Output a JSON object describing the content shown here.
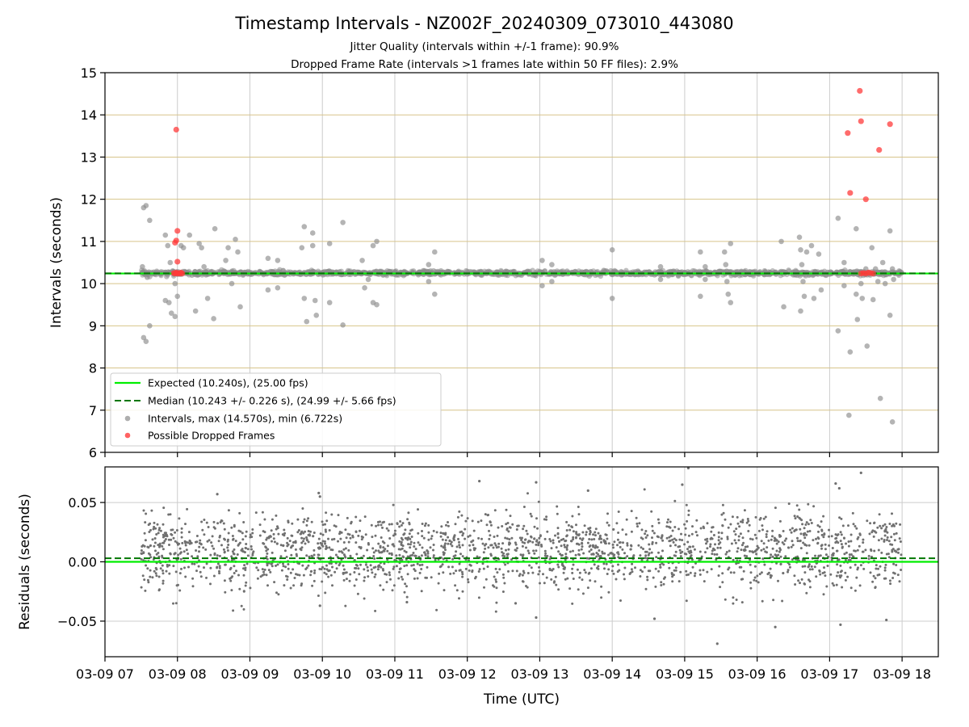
{
  "title": "Timestamp Intervals - NZ002F_20240309_073010_443080",
  "subtitle_lines": [
    "Jitter Quality (intervals within +/-1 frame): 90.9%",
    "Dropped Frame Rate (intervals >1 frames late within 50 FF files): 2.9%"
  ],
  "colors": {
    "expected": "#00ee00",
    "median": "#007700",
    "intervals": "#8c8c8c",
    "dropped": "#ff3b3b",
    "residuals": "#707070",
    "hgrid_top": "#d7c48a",
    "vgrid": "#cccccc"
  },
  "chart_data": [
    {
      "type": "scatter",
      "panel": "top",
      "ylabel": "Intervals (seconds)",
      "xlim": [
        "2024-03-09T07:00",
        "2024-03-09T18:30"
      ],
      "ylim": [
        6,
        15
      ],
      "yticks": [
        6,
        7,
        8,
        9,
        10,
        11,
        12,
        13,
        14,
        15
      ],
      "grid": true,
      "legend_position": "lower-left",
      "expected_line": 10.24,
      "median_line": 10.243,
      "legend": [
        "Expected (10.240s), (25.00 fps)",
        "Median (10.243 +/- 0.226 s), (24.99 +/- 5.66 fps)",
        "Intervals, max (14.570s), min (6.722s)",
        "Possible Dropped Frames"
      ],
      "band": {
        "start": "2024-03-09T07:30",
        "end": "2024-03-09T18:00",
        "center": 10.25,
        "spread": 0.025
      },
      "outlier_intervals": [
        [
          "2024-03-09T07:32",
          11.8
        ],
        [
          "2024-03-09T07:34",
          11.85
        ],
        [
          "2024-03-09T07:37",
          11.5
        ],
        [
          "2024-03-09T07:32",
          8.72
        ],
        [
          "2024-03-09T07:34",
          8.63
        ],
        [
          "2024-03-09T07:37",
          9.0
        ],
        [
          "2024-03-09T07:31",
          10.4
        ],
        [
          "2024-03-09T07:35",
          10.15
        ],
        [
          "2024-03-09T07:50",
          11.15
        ],
        [
          "2024-03-09T07:52",
          10.9
        ],
        [
          "2024-03-09T07:54",
          10.5
        ],
        [
          "2024-03-09T07:56",
          10.3
        ],
        [
          "2024-03-09T07:58",
          10.0
        ],
        [
          "2024-03-09T07:50",
          9.6
        ],
        [
          "2024-03-09T07:53",
          9.55
        ],
        [
          "2024-03-09T07:55",
          9.3
        ],
        [
          "2024-03-09T07:58",
          9.22
        ],
        [
          "2024-03-09T08:00",
          9.7
        ],
        [
          "2024-03-09T08:03",
          10.9
        ],
        [
          "2024-03-09T08:05",
          10.85
        ],
        [
          "2024-03-09T08:10",
          11.15
        ],
        [
          "2024-03-09T08:12",
          10.2
        ],
        [
          "2024-03-09T08:15",
          9.35
        ],
        [
          "2024-03-09T08:18",
          10.95
        ],
        [
          "2024-03-09T08:20",
          10.85
        ],
        [
          "2024-03-09T08:22",
          10.4
        ],
        [
          "2024-03-09T08:25",
          9.65
        ],
        [
          "2024-03-09T08:30",
          9.17
        ],
        [
          "2024-03-09T08:31",
          11.3
        ],
        [
          "2024-03-09T08:40",
          10.55
        ],
        [
          "2024-03-09T08:42",
          10.85
        ],
        [
          "2024-03-09T08:45",
          10.0
        ],
        [
          "2024-03-09T08:48",
          11.05
        ],
        [
          "2024-03-09T08:50",
          10.75
        ],
        [
          "2024-03-09T08:52",
          9.45
        ],
        [
          "2024-03-09T09:15",
          10.6
        ],
        [
          "2024-03-09T09:15",
          9.85
        ],
        [
          "2024-03-09T09:23",
          10.55
        ],
        [
          "2024-03-09T09:23",
          9.9
        ],
        [
          "2024-03-09T09:43",
          10.85
        ],
        [
          "2024-03-09T09:45",
          11.35
        ],
        [
          "2024-03-09T09:45",
          9.65
        ],
        [
          "2024-03-09T09:47",
          9.1
        ],
        [
          "2024-03-09T09:52",
          11.2
        ],
        [
          "2024-03-09T09:52",
          10.9
        ],
        [
          "2024-03-09T09:54",
          9.6
        ],
        [
          "2024-03-09T09:55",
          9.25
        ],
        [
          "2024-03-09T10:06",
          10.95
        ],
        [
          "2024-03-09T10:06",
          9.55
        ],
        [
          "2024-03-09T10:17",
          11.45
        ],
        [
          "2024-03-09T10:17",
          9.02
        ],
        [
          "2024-03-09T10:33",
          10.55
        ],
        [
          "2024-03-09T10:35",
          9.9
        ],
        [
          "2024-03-09T10:38",
          10.1
        ],
        [
          "2024-03-09T10:42",
          10.9
        ],
        [
          "2024-03-09T10:45",
          11.0
        ],
        [
          "2024-03-09T10:42",
          9.55
        ],
        [
          "2024-03-09T10:45",
          9.5
        ],
        [
          "2024-03-09T11:28",
          10.45
        ],
        [
          "2024-03-09T11:28",
          10.05
        ],
        [
          "2024-03-09T11:33",
          10.75
        ],
        [
          "2024-03-09T11:33",
          9.75
        ],
        [
          "2024-03-09T13:02",
          10.55
        ],
        [
          "2024-03-09T13:02",
          9.95
        ],
        [
          "2024-03-09T13:10",
          10.45
        ],
        [
          "2024-03-09T13:10",
          10.05
        ],
        [
          "2024-03-09T14:00",
          10.8
        ],
        [
          "2024-03-09T14:00",
          9.65
        ],
        [
          "2024-03-09T14:40",
          10.4
        ],
        [
          "2024-03-09T14:40",
          10.1
        ],
        [
          "2024-03-09T15:13",
          10.75
        ],
        [
          "2024-03-09T15:13",
          9.7
        ],
        [
          "2024-03-09T15:17",
          10.4
        ],
        [
          "2024-03-09T15:17",
          10.1
        ],
        [
          "2024-03-09T15:33",
          10.75
        ],
        [
          "2024-03-09T15:34",
          10.45
        ],
        [
          "2024-03-09T15:35",
          10.05
        ],
        [
          "2024-03-09T15:36",
          9.75
        ],
        [
          "2024-03-09T15:38",
          10.95
        ],
        [
          "2024-03-09T15:38",
          9.55
        ],
        [
          "2024-03-09T16:20",
          11.0
        ],
        [
          "2024-03-09T16:22",
          9.45
        ],
        [
          "2024-03-09T16:35",
          11.1
        ],
        [
          "2024-03-09T16:36",
          10.8
        ],
        [
          "2024-03-09T16:37",
          10.45
        ],
        [
          "2024-03-09T16:38",
          10.05
        ],
        [
          "2024-03-09T16:39",
          9.7
        ],
        [
          "2024-03-09T16:36",
          9.35
        ],
        [
          "2024-03-09T16:41",
          10.75
        ],
        [
          "2024-03-09T16:43",
          10.2
        ],
        [
          "2024-03-09T16:45",
          10.9
        ],
        [
          "2024-03-09T16:47",
          9.65
        ],
        [
          "2024-03-09T16:51",
          10.7
        ],
        [
          "2024-03-09T16:53",
          9.85
        ],
        [
          "2024-03-09T17:07",
          11.55
        ],
        [
          "2024-03-09T17:07",
          8.88
        ],
        [
          "2024-03-09T17:12",
          10.5
        ],
        [
          "2024-03-09T17:12",
          9.95
        ],
        [
          "2024-03-09T17:17",
          8.38
        ],
        [
          "2024-03-09T17:22",
          11.3
        ],
        [
          "2024-03-09T17:22",
          9.75
        ],
        [
          "2024-03-09T17:23",
          9.15
        ],
        [
          "2024-03-09T17:26",
          10.0
        ],
        [
          "2024-03-09T17:27",
          9.65
        ],
        [
          "2024-03-09T17:30",
          10.35
        ],
        [
          "2024-03-09T17:31",
          8.52
        ],
        [
          "2024-03-09T17:35",
          10.85
        ],
        [
          "2024-03-09T17:36",
          9.62
        ],
        [
          "2024-03-09T17:38",
          10.35
        ],
        [
          "2024-03-09T17:40",
          10.05
        ],
        [
          "2024-03-09T17:44",
          10.5
        ],
        [
          "2024-03-09T17:46",
          10.0
        ],
        [
          "2024-03-09T17:50",
          11.25
        ],
        [
          "2024-03-09T17:50",
          9.25
        ],
        [
          "2024-03-09T17:52",
          10.35
        ],
        [
          "2024-03-09T17:53",
          10.1
        ],
        [
          "2024-03-09T17:16",
          6.88
        ],
        [
          "2024-03-09T17:42",
          7.28
        ],
        [
          "2024-03-09T17:52",
          6.722
        ]
      ],
      "dropped_frames": [
        [
          "2024-03-09T07:59",
          13.65
        ],
        [
          "2024-03-09T08:00",
          11.25
        ],
        [
          "2024-03-09T07:59",
          11.02
        ],
        [
          "2024-03-09T07:58",
          10.97
        ],
        [
          "2024-03-09T08:00",
          10.52
        ],
        [
          "2024-03-09T07:57",
          10.25
        ],
        [
          "2024-03-09T07:58",
          10.24
        ],
        [
          "2024-03-09T07:59",
          10.26
        ],
        [
          "2024-03-09T08:00",
          10.24
        ],
        [
          "2024-03-09T08:01",
          10.25
        ],
        [
          "2024-03-09T08:02",
          10.24
        ],
        [
          "2024-03-09T08:03",
          10.26
        ],
        [
          "2024-03-09T08:04",
          10.24
        ],
        [
          "2024-03-09T17:15",
          13.57
        ],
        [
          "2024-03-09T17:25",
          14.57
        ],
        [
          "2024-03-09T17:26",
          13.85
        ],
        [
          "2024-03-09T17:17",
          12.15
        ],
        [
          "2024-03-09T17:30",
          12.0
        ],
        [
          "2024-03-09T17:41",
          13.17
        ],
        [
          "2024-03-09T17:50",
          13.78
        ],
        [
          "2024-03-09T17:26",
          10.24
        ],
        [
          "2024-03-09T17:28",
          10.25
        ],
        [
          "2024-03-09T17:30",
          10.24
        ],
        [
          "2024-03-09T17:32",
          10.26
        ],
        [
          "2024-03-09T17:34",
          10.25
        ],
        [
          "2024-03-09T17:36",
          10.24
        ]
      ]
    },
    {
      "type": "scatter",
      "panel": "bottom",
      "xlabel": "Time (UTC)",
      "ylabel": "Residuals (seconds)",
      "xlim": [
        "2024-03-09T07:00",
        "2024-03-09T18:30"
      ],
      "ylim": [
        -0.08,
        0.08
      ],
      "yticks": [
        -0.05,
        0.0,
        0.05
      ],
      "ytick_labels": [
        "−0.05",
        "0.00",
        "0.05"
      ],
      "xticks": [
        "2024-03-09T07:00",
        "2024-03-09T08:00",
        "2024-03-09T09:00",
        "2024-03-09T10:00",
        "2024-03-09T11:00",
        "2024-03-09T12:00",
        "2024-03-09T13:00",
        "2024-03-09T14:00",
        "2024-03-09T15:00",
        "2024-03-09T16:00",
        "2024-03-09T17:00",
        "2024-03-09T18:00"
      ],
      "xtick_labels": [
        "03-09 07",
        "03-09 08",
        "03-09 09",
        "03-09 10",
        "03-09 11",
        "03-09 12",
        "03-09 13",
        "03-09 14",
        "03-09 15",
        "03-09 16",
        "03-09 17",
        "03-09 18"
      ],
      "grid": true,
      "zero_line": 0.0,
      "median_line": 0.003,
      "scatter_range": {
        "start": "2024-03-09T07:30",
        "end": "2024-03-09T18:00"
      },
      "cluster_upper": {
        "center": 0.018,
        "spread": 0.012
      },
      "cluster_lower": {
        "center": -0.002,
        "spread": 0.013
      },
      "outliers": [
        [
          "2024-03-09T09:57",
          0.058
        ],
        [
          "2024-03-09T09:58",
          0.055
        ],
        [
          "2024-03-09T08:33",
          0.057
        ],
        [
          "2024-03-09T12:10",
          0.068
        ],
        [
          "2024-03-09T12:57",
          0.067
        ],
        [
          "2024-03-09T13:40",
          0.06
        ],
        [
          "2024-03-09T15:03",
          0.079
        ],
        [
          "2024-03-09T14:58",
          0.065
        ],
        [
          "2024-03-09T17:05",
          0.066
        ],
        [
          "2024-03-09T17:26",
          0.075
        ],
        [
          "2024-03-09T17:08",
          0.062
        ],
        [
          "2024-03-09T15:27",
          -0.069
        ],
        [
          "2024-03-09T16:15",
          -0.055
        ],
        [
          "2024-03-09T17:09",
          -0.053
        ],
        [
          "2024-03-09T12:57",
          -0.047
        ],
        [
          "2024-03-09T14:35",
          -0.048
        ],
        [
          "2024-03-09T17:47",
          -0.049
        ],
        [
          "2024-03-09T09:58",
          -0.037
        ],
        [
          "2024-03-09T11:10",
          -0.034
        ],
        [
          "2024-03-09T12:40",
          -0.035
        ]
      ]
    }
  ]
}
